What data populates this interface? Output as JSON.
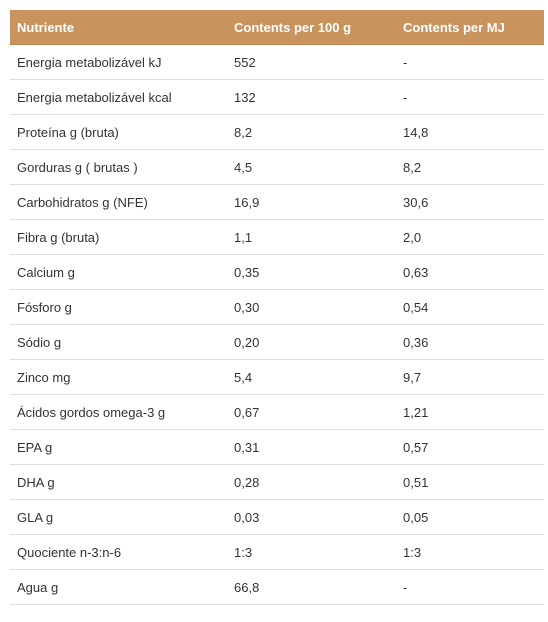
{
  "table": {
    "headers": [
      "Nutriente",
      "Contents per 100 g",
      "Contents per MJ"
    ],
    "rows": [
      [
        "Energia metabolizável kJ",
        "552",
        "-"
      ],
      [
        "Energia metabolizável kcal",
        "132",
        "-"
      ],
      [
        "Proteína g (bruta)",
        "8,2",
        "14,8"
      ],
      [
        "Gorduras g ( brutas )",
        "4,5",
        "8,2"
      ],
      [
        "Carbohidratos g (NFE)",
        "16,9",
        "30,6"
      ],
      [
        "Fibra g (bruta)",
        "1,1",
        "2,0"
      ],
      [
        "Calcium g",
        "0,35",
        "0,63"
      ],
      [
        "Fósforo g",
        "0,30",
        "0,54"
      ],
      [
        "Sódio g",
        "0,20",
        "0,36"
      ],
      [
        "Zinco mg",
        "5,4",
        "9,7"
      ],
      [
        "Ácidos gordos omega-3 g",
        "0,67",
        "1,21"
      ],
      [
        "EPA g",
        "0,31",
        "0,57"
      ],
      [
        "DHA g",
        "0,28",
        "0,51"
      ],
      [
        "GLA g",
        "0,03",
        "0,05"
      ],
      [
        "Quociente n-3:n-6",
        "1:3",
        "1:3"
      ],
      [
        "Agua g",
        "66,8",
        "-"
      ]
    ]
  },
  "colors": {
    "header_bg": "#c9935e",
    "header_text": "#ffffff",
    "row_border": "#dddddd"
  }
}
